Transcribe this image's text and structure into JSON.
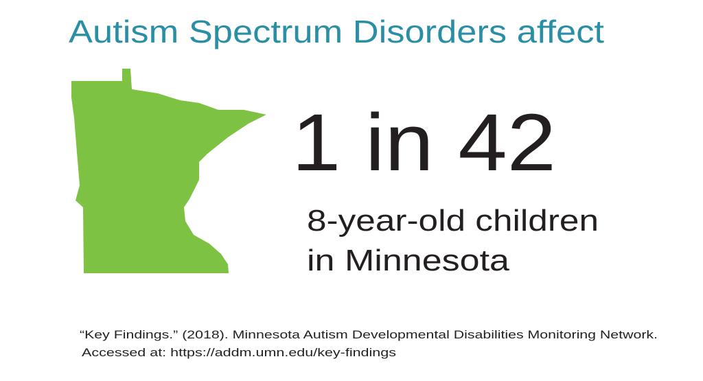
{
  "header": {
    "title": "Autism Spectrum Disorders affect"
  },
  "stat": {
    "ratio": "1 in 42",
    "description": [
      "8-year-old children",
      "in Minnesota"
    ]
  },
  "citation": [
    "“Key Findings.” (2018). Minnesota Autism Developmental Disabilities Monitoring Network.",
    "Accessed at: https://addm.umn.edu/key-findings"
  ]
}
